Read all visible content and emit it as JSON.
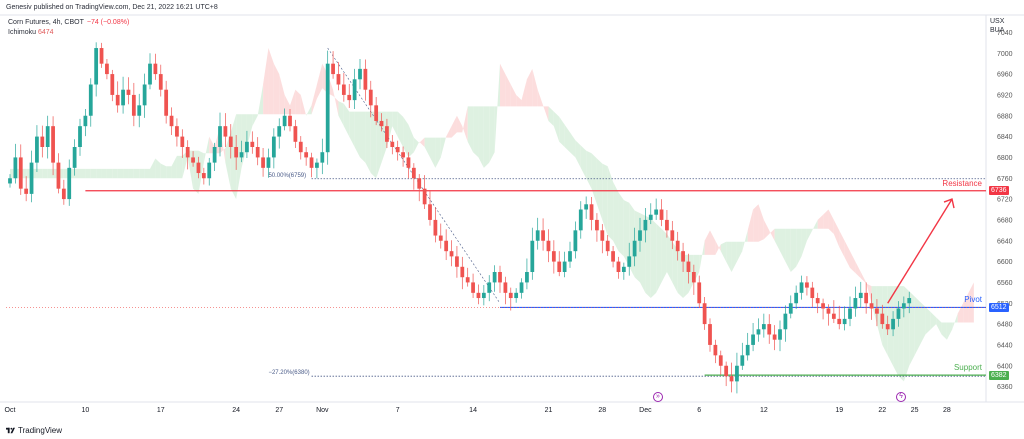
{
  "header": {
    "published_line": "Genesiv published on TradingView.com, Dec 21, 2022 16:21 UTC+8"
  },
  "legend": {
    "symbol": "Corn Futures, 4h, CBOT",
    "change": "−74 (−0.08%)",
    "indicator": "Ichimoku",
    "indicator_value": "6474"
  },
  "price_axis_header": [
    "USX",
    "BUA"
  ],
  "footer": {
    "brand": "TradingView",
    "logo_icon": "tradingview-logo-icon"
  },
  "colors": {
    "up": "#26a69a",
    "down": "#ef5350",
    "resistance": "#f23645",
    "pivot": "#2962ff",
    "support": "#4caf50",
    "fib": "#4a5b88",
    "cloud_bull": "#d8efdc",
    "cloud_bear": "#fbd7d7",
    "arrow": "#f23645"
  },
  "chart_data": {
    "type": "candlestick",
    "title": "Corn Futures, 4h, CBOT",
    "ylim": [
      6340,
      7060
    ],
    "y_ticks": [
      7040,
      7000,
      6960,
      6920,
      6880,
      6840,
      6800,
      6760,
      6720,
      6680,
      6640,
      6600,
      6560,
      6520,
      6480,
      6440,
      6400,
      6360
    ],
    "y_tick_labels": [
      "7040",
      "7000",
      "6960",
      "6920",
      "6880",
      "6840",
      "6800",
      "6760",
      "6720",
      "6680",
      "6640",
      "6600",
      "6560",
      "6520",
      "6480",
      "6440",
      "6400",
      "6360"
    ],
    "x_ticks": [
      {
        "label": "Oct",
        "bar": 0
      },
      {
        "label": "10",
        "bar": 14
      },
      {
        "label": "17",
        "bar": 28
      },
      {
        "label": "24",
        "bar": 42
      },
      {
        "label": "27",
        "bar": 50
      },
      {
        "label": "Nov",
        "bar": 58
      },
      {
        "label": "7",
        "bar": 72
      },
      {
        "label": "14",
        "bar": 86
      },
      {
        "label": "21",
        "bar": 100
      },
      {
        "label": "28",
        "bar": 110
      },
      {
        "label": "Dec",
        "bar": 118
      },
      {
        "label": "6",
        "bar": 128
      },
      {
        "label": "12",
        "bar": 140
      },
      {
        "label": "19",
        "bar": 154
      },
      {
        "label": "22",
        "bar": 162
      },
      {
        "label": "25",
        "bar": 168
      },
      {
        "label": "28",
        "bar": 174
      }
    ],
    "close_path": [
      6760,
      6800,
      6740,
      6730,
      6790,
      6840,
      6820,
      6860,
      6790,
      6740,
      6720,
      6780,
      6820,
      6860,
      6880,
      6940,
      7010,
      6980,
      6960,
      6920,
      6900,
      6930,
      6920,
      6880,
      6900,
      6940,
      6980,
      6960,
      6930,
      6880,
      6860,
      6840,
      6820,
      6800,
      6790,
      6770,
      6760,
      6790,
      6820,
      6860,
      6840,
      6820,
      6800,
      6810,
      6830,
      6820,
      6800,
      6780,
      6800,
      6840,
      6860,
      6880,
      6860,
      6830,
      6810,
      6800,
      6780,
      6790,
      6810,
      6980,
      6960,
      6940,
      6920,
      6910,
      6950,
      6970,
      6930,
      6900,
      6870,
      6860,
      6830,
      6820,
      6810,
      6800,
      6780,
      6760,
      6740,
      6710,
      6680,
      6650,
      6640,
      6620,
      6610,
      6590,
      6570,
      6560,
      6540,
      6530,
      6540,
      6560,
      6580,
      6560,
      6540,
      6530,
      6540,
      6560,
      6580,
      6640,
      6660,
      6640,
      6620,
      6600,
      6580,
      6600,
      6620,
      6660,
      6700,
      6710,
      6680,
      6660,
      6640,
      6620,
      6600,
      6580,
      6590,
      6610,
      6640,
      6660,
      6680,
      6690,
      6700,
      6680,
      6660,
      6640,
      6620,
      6600,
      6580,
      6560,
      6520,
      6480,
      6440,
      6420,
      6400,
      6380,
      6370,
      6400,
      6420,
      6440,
      6460,
      6470,
      6480,
      6460,
      6450,
      6470,
      6500,
      6520,
      6540,
      6560,
      6550,
      6530,
      6520,
      6510,
      6500,
      6490,
      6480,
      6490,
      6510,
      6530,
      6540,
      6520,
      6510,
      6500,
      6480,
      6470,
      6490,
      6510,
      6520,
      6530
    ],
    "levels": [
      {
        "name": "Resistance",
        "value": 6736,
        "label": "6736",
        "text": "Resistance"
      },
      {
        "name": "Pivot",
        "value": 6512,
        "label": "6512",
        "text": "Pivot"
      },
      {
        "name": "Support",
        "value": 6382,
        "label": "6382",
        "text": "Support"
      }
    ],
    "fibonacci": [
      {
        "text": "50.00%(6759)",
        "value": 6759
      },
      {
        "text": "−27.20%(6380)",
        "value": 6380
      }
    ],
    "current_price": 6512
  }
}
